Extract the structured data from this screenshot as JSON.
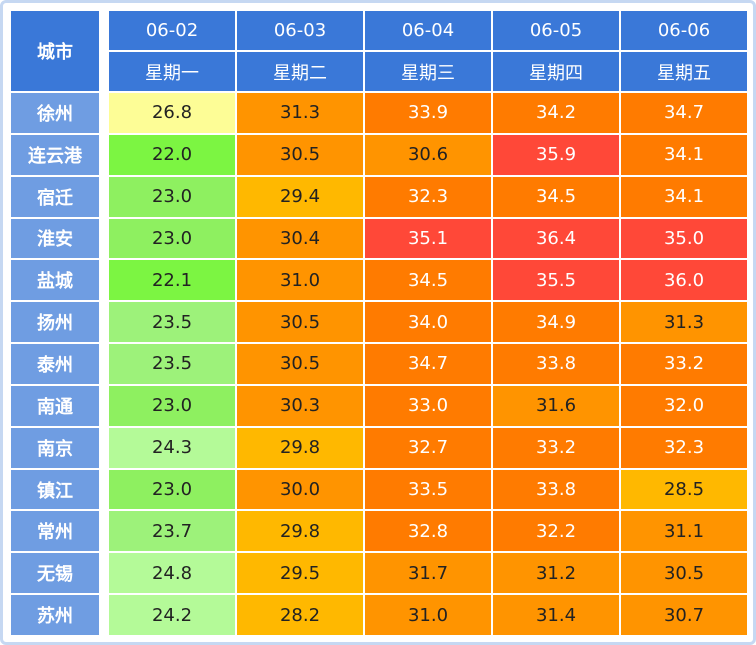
{
  "header": {
    "city": "城市",
    "dates": [
      "06-02",
      "06-03",
      "06-04",
      "06-05",
      "06-06"
    ],
    "weekdays": [
      "星期一",
      "星期二",
      "星期三",
      "星期四",
      "星期五"
    ]
  },
  "rows": [
    {
      "city": "徐州",
      "values": [
        "26.8",
        "31.3",
        "33.9",
        "34.2",
        "34.7"
      ],
      "colors": [
        "#fdfd96",
        "#ff9400",
        "#ff7b00",
        "#ff7b00",
        "#ff7b00"
      ]
    },
    {
      "city": "连云港",
      "values": [
        "22.0",
        "30.5",
        "30.6",
        "35.9",
        "34.1"
      ],
      "colors": [
        "#7cf542",
        "#ff9400",
        "#ff9400",
        "#ff4838",
        "#ff7b00"
      ]
    },
    {
      "city": "宿迁",
      "values": [
        "23.0",
        "29.4",
        "32.3",
        "34.5",
        "34.1"
      ],
      "colors": [
        "#8ef060",
        "#ffb800",
        "#ff7b00",
        "#ff7b00",
        "#ff7b00"
      ]
    },
    {
      "city": "淮安",
      "values": [
        "23.0",
        "30.4",
        "35.1",
        "36.4",
        "35.0"
      ],
      "colors": [
        "#8ef060",
        "#ff9400",
        "#ff4838",
        "#ff4838",
        "#ff4838"
      ]
    },
    {
      "city": "盐城",
      "values": [
        "22.1",
        "31.0",
        "34.5",
        "35.5",
        "36.0"
      ],
      "colors": [
        "#7cf542",
        "#ff9400",
        "#ff7b00",
        "#ff4838",
        "#ff4838"
      ]
    },
    {
      "city": "扬州",
      "values": [
        "23.5",
        "30.5",
        "34.0",
        "34.9",
        "31.3"
      ],
      "colors": [
        "#9df27a",
        "#ff9400",
        "#ff7b00",
        "#ff7b00",
        "#ff9400"
      ]
    },
    {
      "city": "泰州",
      "values": [
        "23.5",
        "30.5",
        "34.7",
        "33.8",
        "33.2"
      ],
      "colors": [
        "#9df27a",
        "#ff9400",
        "#ff7b00",
        "#ff7b00",
        "#ff7b00"
      ]
    },
    {
      "city": "南通",
      "values": [
        "23.0",
        "30.3",
        "33.0",
        "31.6",
        "32.0"
      ],
      "colors": [
        "#8ef060",
        "#ff9400",
        "#ff7b00",
        "#ff9400",
        "#ff7b00"
      ]
    },
    {
      "city": "南京",
      "values": [
        "24.3",
        "29.8",
        "32.7",
        "33.2",
        "32.3"
      ],
      "colors": [
        "#b4fa98",
        "#ffb800",
        "#ff7b00",
        "#ff7b00",
        "#ff7b00"
      ]
    },
    {
      "city": "镇江",
      "values": [
        "23.0",
        "30.0",
        "33.5",
        "33.8",
        "28.5"
      ],
      "colors": [
        "#8ef060",
        "#ff9400",
        "#ff7b00",
        "#ff7b00",
        "#ffb800"
      ]
    },
    {
      "city": "常州",
      "values": [
        "23.7",
        "29.8",
        "32.8",
        "32.2",
        "31.1"
      ],
      "colors": [
        "#9df27a",
        "#ffb800",
        "#ff7b00",
        "#ff7b00",
        "#ff9400"
      ]
    },
    {
      "city": "无锡",
      "values": [
        "24.8",
        "29.5",
        "31.7",
        "31.2",
        "30.5"
      ],
      "colors": [
        "#b4fa98",
        "#ffb800",
        "#ff9400",
        "#ff9400",
        "#ff9400"
      ]
    },
    {
      "city": "苏州",
      "values": [
        "24.2",
        "28.2",
        "31.0",
        "31.4",
        "30.7"
      ],
      "colors": [
        "#b4fa98",
        "#ffb800",
        "#ff9400",
        "#ff9400",
        "#ff9400"
      ]
    }
  ]
}
